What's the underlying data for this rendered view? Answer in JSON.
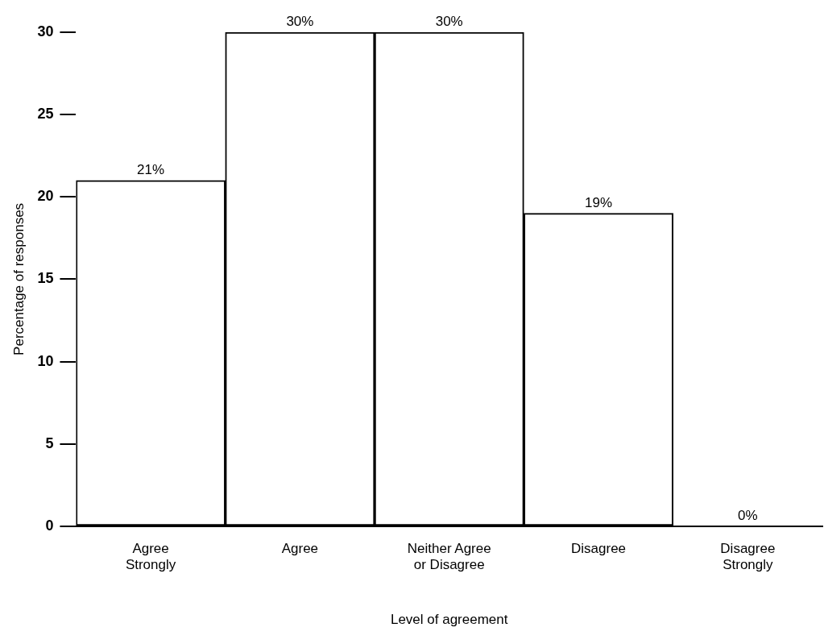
{
  "chart_data": {
    "type": "bar",
    "xlabel": "Level of agreement",
    "ylabel": "Percentage of responses",
    "categories": [
      "Agree Strongly",
      "Agree",
      "Neither Agree or Disagree",
      "Disagree",
      "Disagree Strongly"
    ],
    "values": [
      21,
      30,
      30,
      19,
      0
    ],
    "value_labels": [
      "21%",
      "30%",
      "30%",
      "19%",
      "0%"
    ],
    "color": "#ffffff",
    "ylim": [
      0,
      30
    ],
    "yticks": [
      0,
      5,
      10,
      15,
      20,
      25,
      30
    ],
    "grid": false,
    "legend": false
  }
}
